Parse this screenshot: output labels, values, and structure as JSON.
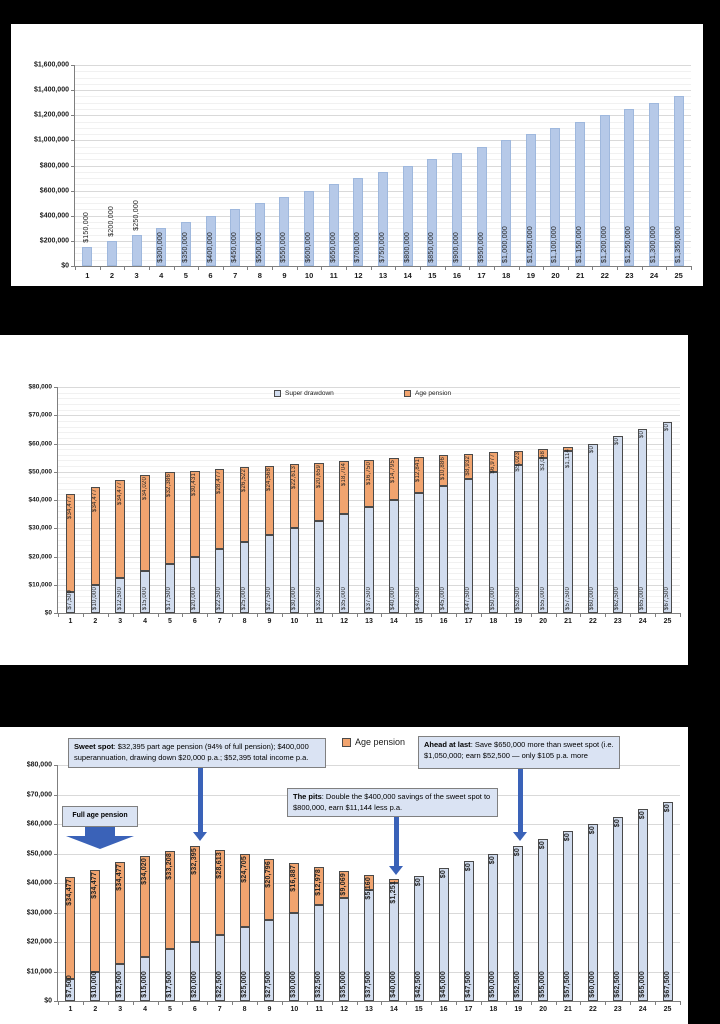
{
  "colors": {
    "background": "#000000",
    "panel": "#ffffff",
    "savings_bar_fill": "#b6c9e8",
    "savings_bar_border": "#9fb8dd",
    "super_fill": "#d1dcee",
    "pension_fill": "#f1a46f",
    "segment_border": "#4a4a4a",
    "grid_major": "#d9d9d9",
    "grid_minor": "#f1f1f1",
    "axis": "#7f7f7f",
    "arrow": "#3a62b8",
    "callout_fill": "#dae3f3",
    "callout_border": "#808080"
  },
  "chart_data": [
    {
      "id": "savings-levels",
      "type": "bar",
      "title": "",
      "categories": [
        "1",
        "2",
        "3",
        "4",
        "5",
        "6",
        "7",
        "8",
        "9",
        "10",
        "11",
        "12",
        "13",
        "14",
        "15",
        "16",
        "17",
        "18",
        "19",
        "20",
        "21",
        "22",
        "23",
        "24",
        "25"
      ],
      "values": [
        150000,
        200000,
        250000,
        300000,
        350000,
        400000,
        450000,
        500000,
        550000,
        600000,
        650000,
        700000,
        750000,
        800000,
        850000,
        900000,
        950000,
        1000000,
        1050000,
        1100000,
        1150000,
        1200000,
        1250000,
        1300000,
        1350000
      ],
      "data_labels": [
        "$150,000",
        "$200,000",
        "$250,000",
        "$300,000",
        "$350,000",
        "$400,000",
        "$450,000",
        "$500,000",
        "$550,000",
        "$600,000",
        "$650,000",
        "$700,000",
        "$750,000",
        "$800,000",
        "$850,000",
        "$900,000",
        "$950,000",
        "$1,000,000",
        "$1,050,000",
        "$1,100,000",
        "$1,150,000",
        "$1,200,000",
        "$1,250,000",
        "$1,300,000",
        "$1,350,000"
      ],
      "y_ticks": [
        "$0",
        "$200,000",
        "$400,000",
        "$600,000",
        "$800,000",
        "$1,000,000",
        "$1,200,000",
        "$1,400,000",
        "$1,600,000"
      ],
      "ylim": [
        0,
        1600000
      ],
      "grid": "major+minor",
      "legend": []
    },
    {
      "id": "income-mix",
      "type": "stacked-bar",
      "title": "",
      "categories": [
        "1",
        "2",
        "3",
        "4",
        "5",
        "6",
        "7",
        "8",
        "9",
        "10",
        "11",
        "12",
        "13",
        "14",
        "15",
        "16",
        "17",
        "18",
        "19",
        "20",
        "21",
        "22",
        "23",
        "24",
        "25"
      ],
      "series": [
        {
          "name": "Super drawdown",
          "values": [
            7500,
            10000,
            12500,
            15000,
            17500,
            20000,
            22500,
            25000,
            27500,
            30000,
            32500,
            35000,
            37500,
            40000,
            42500,
            45000,
            47500,
            50000,
            52500,
            55000,
            57500,
            60000,
            62500,
            65000,
            67500
          ]
        },
        {
          "name": "Age pension",
          "values": [
            34477,
            34477,
            34477,
            34020,
            32386,
            30431,
            28477,
            26522,
            24568,
            22613,
            20659,
            18704,
            16750,
            14795,
            12841,
            10886,
            8932,
            6977,
            5023,
            3068,
            1114,
            0,
            0,
            0,
            0
          ]
        }
      ],
      "legend": [
        "Super drawdown",
        "Age pension"
      ],
      "legend_position": "top-center-inside",
      "y_ticks": [
        "$0",
        "$10,000",
        "$20,000",
        "$30,000",
        "$40,000",
        "$50,000",
        "$60,000",
        "$70,000",
        "$80,000"
      ],
      "ylim": [
        0,
        80000
      ],
      "grid": "major+minor"
    },
    {
      "id": "income-mix-annotated",
      "type": "stacked-bar",
      "title": "",
      "categories": [
        "1",
        "2",
        "3",
        "4",
        "5",
        "6",
        "7",
        "8",
        "9",
        "10",
        "11",
        "12",
        "13",
        "14",
        "15",
        "16",
        "17",
        "18",
        "19",
        "20",
        "21",
        "22",
        "23",
        "24",
        "25"
      ],
      "series": [
        {
          "name": "Super drawdown",
          "values": [
            7500,
            10000,
            12500,
            15000,
            17500,
            20000,
            22500,
            25000,
            27500,
            30000,
            32500,
            35000,
            37500,
            40000,
            42500,
            45000,
            47500,
            50000,
            52500,
            55000,
            57500,
            60000,
            62500,
            65000,
            67500
          ]
        },
        {
          "name": "Age pension",
          "values": [
            34477,
            34477,
            34477,
            34020,
            33208,
            32395,
            28613,
            24705,
            20796,
            16887,
            12978,
            9069,
            5160,
            1251,
            0,
            0,
            0,
            0,
            0,
            0,
            0,
            0,
            0,
            0,
            0
          ]
        }
      ],
      "legend": [
        "Super drawdown",
        "Age pension"
      ],
      "legend_position": "top-above-plot",
      "y_ticks": [
        "$0",
        "$10,000",
        "$20,000",
        "$30,000",
        "$40,000",
        "$50,000",
        "$60,000",
        "$70,000",
        "$80,000"
      ],
      "ylim": [
        0,
        80000
      ],
      "grid": "major",
      "annotations": [
        {
          "id": "full-age-pension",
          "lead": "Full age pension",
          "body": ""
        },
        {
          "id": "sweet-spot",
          "lead": "Sweet spot",
          "body": ": $32,395 part age pension (94% of full pension);  $400,000 superannuation, drawing down $20,000 p.a.; $52,395 total income p.a."
        },
        {
          "id": "the-pits",
          "lead": "The pits",
          "body": ": Double the $400,000 savings of the sweet spot to $800,000, earn $11,144 less p.a."
        },
        {
          "id": "ahead-at-last",
          "lead": "Ahead at last",
          "body": ": Save $650,000 more than sweet spot (i.e. $1,050,000; earn $52,500 — only $105 p.a. more"
        }
      ]
    }
  ]
}
